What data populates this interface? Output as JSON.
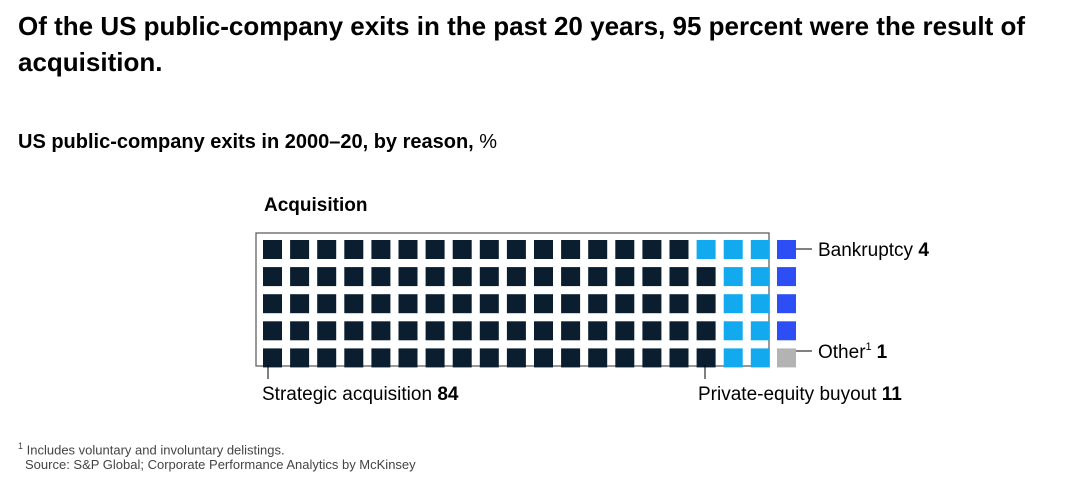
{
  "title": "Of the US public-company exits in the past 20 years, 95 percent were the result of acquisition.",
  "subtitle": "US public-company exits in 2000–20, by reason,",
  "subtitle_unit": "%",
  "chart_data": {
    "type": "waffle",
    "grid": {
      "rows": 5,
      "columns": 20,
      "total": 100
    },
    "group_label": "Acquisition",
    "categories": [
      {
        "name": "Strategic acquisition",
        "value": 84,
        "color": "#0b1e2f",
        "in_group": true
      },
      {
        "name": "Private-equity buyout",
        "value": 11,
        "color": "#12a9ef",
        "in_group": true
      },
      {
        "name": "Bankruptcy",
        "value": 4,
        "color": "#2e4ef5",
        "in_group": false
      },
      {
        "name": "Other",
        "value": 1,
        "color": "#b3b3b3",
        "in_group": false,
        "footnote_mark": "1"
      }
    ]
  },
  "footnote": {
    "mark": "1",
    "text": "Includes voluntary and involuntary delistings."
  },
  "source": "Source: S&P Global; Corporate Performance Analytics by McKinsey"
}
